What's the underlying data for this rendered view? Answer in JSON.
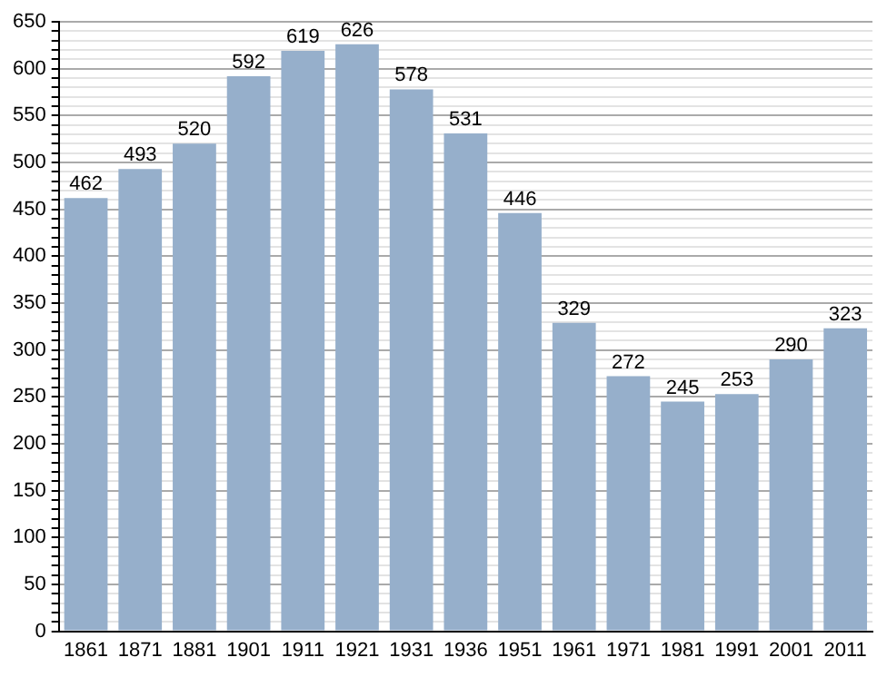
{
  "chart_data": {
    "type": "bar",
    "categories": [
      "1861",
      "1871",
      "1881",
      "1901",
      "1911",
      "1921",
      "1931",
      "1936",
      "1951",
      "1961",
      "1971",
      "1981",
      "1991",
      "2001",
      "2011"
    ],
    "values": [
      462,
      493,
      520,
      592,
      619,
      626,
      578,
      531,
      446,
      329,
      272,
      245,
      253,
      290,
      323
    ],
    "color": "#96afcb",
    "ylim": [
      0,
      650
    ],
    "yticks": [
      0,
      {
        "value": 10,
        "label": null
      },
      {
        "value": 20,
        "label": null
      },
      {
        "value": 30,
        "label": null
      },
      {
        "value": 40,
        "label": null
      },
      50,
      {
        "value": 60,
        "label": null
      },
      {
        "value": 70,
        "label": null
      },
      {
        "value": 80,
        "label": null
      },
      {
        "value": 90,
        "label": null
      },
      100,
      {
        "value": 110,
        "label": null
      },
      {
        "value": 120,
        "label": null
      },
      {
        "value": 130,
        "label": null
      },
      {
        "value": 140,
        "label": null
      },
      150,
      {
        "value": 160,
        "label": null
      },
      {
        "value": 170,
        "label": null
      },
      {
        "value": 180,
        "label": null
      },
      {
        "value": 190,
        "label": null
      },
      200,
      {
        "value": 210,
        "label": null
      },
      {
        "value": 220,
        "label": null
      },
      {
        "value": 230,
        "label": null
      },
      {
        "value": 240,
        "label": null
      },
      250,
      {
        "value": 260,
        "label": null
      },
      {
        "value": 270,
        "label": null
      },
      {
        "value": 280,
        "label": null
      },
      {
        "value": 290,
        "label": null
      },
      300,
      {
        "value": 310,
        "label": null
      },
      {
        "value": 320,
        "label": null
      },
      {
        "value": 330,
        "label": null
      },
      {
        "value": 340,
        "label": null
      },
      350,
      {
        "value": 360,
        "label": null
      },
      {
        "value": 370,
        "label": null
      },
      {
        "value": 380,
        "label": null
      },
      {
        "value": 390,
        "label": null
      },
      400,
      {
        "value": 410,
        "label": null
      },
      {
        "value": 420,
        "label": null
      },
      {
        "value": 430,
        "label": null
      },
      {
        "value": 440,
        "label": null
      },
      450,
      {
        "value": 460,
        "label": null
      },
      {
        "value": 470,
        "label": null
      },
      {
        "value": 480,
        "label": null
      },
      {
        "value": 490,
        "label": null
      },
      500,
      {
        "value": 510,
        "label": null
      },
      {
        "value": 520,
        "label": null
      },
      {
        "value": 530,
        "label": null
      },
      {
        "value": 540,
        "label": null
      },
      550,
      {
        "value": 560,
        "label": null
      },
      {
        "value": 570,
        "label": null
      },
      {
        "value": 580,
        "label": null
      },
      {
        "value": 590,
        "label": null
      },
      600,
      {
        "value": 610,
        "label": null
      },
      {
        "value": 620,
        "label": null
      },
      {
        "value": 630,
        "label": null
      },
      {
        "value": 640,
        "label": null
      },
      650
    ],
    "grid": true,
    "data_labels": true
  }
}
